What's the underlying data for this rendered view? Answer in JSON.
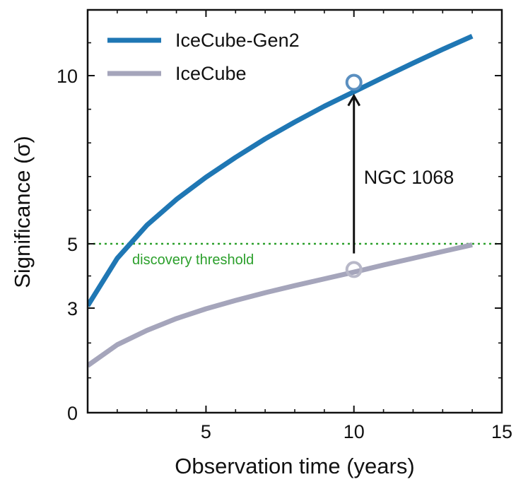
{
  "chart_data": {
    "type": "line",
    "xlabel": "Observation time (years)",
    "ylabel": "Significance (σ)",
    "xlim": [
      1,
      15
    ],
    "ylim": [
      0,
      12
    ],
    "x_ticks": [
      5,
      10,
      15
    ],
    "x_tick_labels": [
      "5",
      "10",
      "15"
    ],
    "y_ticks": [
      0,
      3,
      5,
      10
    ],
    "y_tick_labels": [
      "0",
      "3",
      "5",
      "10"
    ],
    "grid": false,
    "legend_position": "top-left",
    "series": [
      {
        "name": "IceCube-Gen2",
        "color": "#1f77b4",
        "x": [
          1,
          2,
          3,
          4,
          5,
          6,
          7,
          8,
          9,
          10,
          11,
          12,
          13,
          14
        ],
        "y": [
          3.07,
          4.55,
          5.55,
          6.32,
          6.98,
          7.57,
          8.12,
          8.62,
          9.09,
          9.52,
          9.95,
          10.38,
          10.8,
          11.2
        ]
      },
      {
        "name": "IceCube",
        "color": "#a5a5bb",
        "x": [
          1,
          2,
          3,
          4,
          5,
          6,
          7,
          8,
          9,
          10,
          11,
          12,
          13,
          14
        ],
        "y": [
          1.35,
          1.95,
          2.36,
          2.7,
          2.98,
          3.24,
          3.48,
          3.7,
          3.91,
          4.12,
          4.34,
          4.55,
          4.76,
          4.97
        ]
      }
    ],
    "threshold": {
      "value": 5,
      "label": "discovery threshold",
      "color": "#2ca02c"
    },
    "annotation": {
      "label": "NGC 1068",
      "x": 10,
      "from_y": 4.2,
      "to_y": 9.8,
      "arrow_start_y": 4.7,
      "arrow_end_y": 9.4
    }
  }
}
